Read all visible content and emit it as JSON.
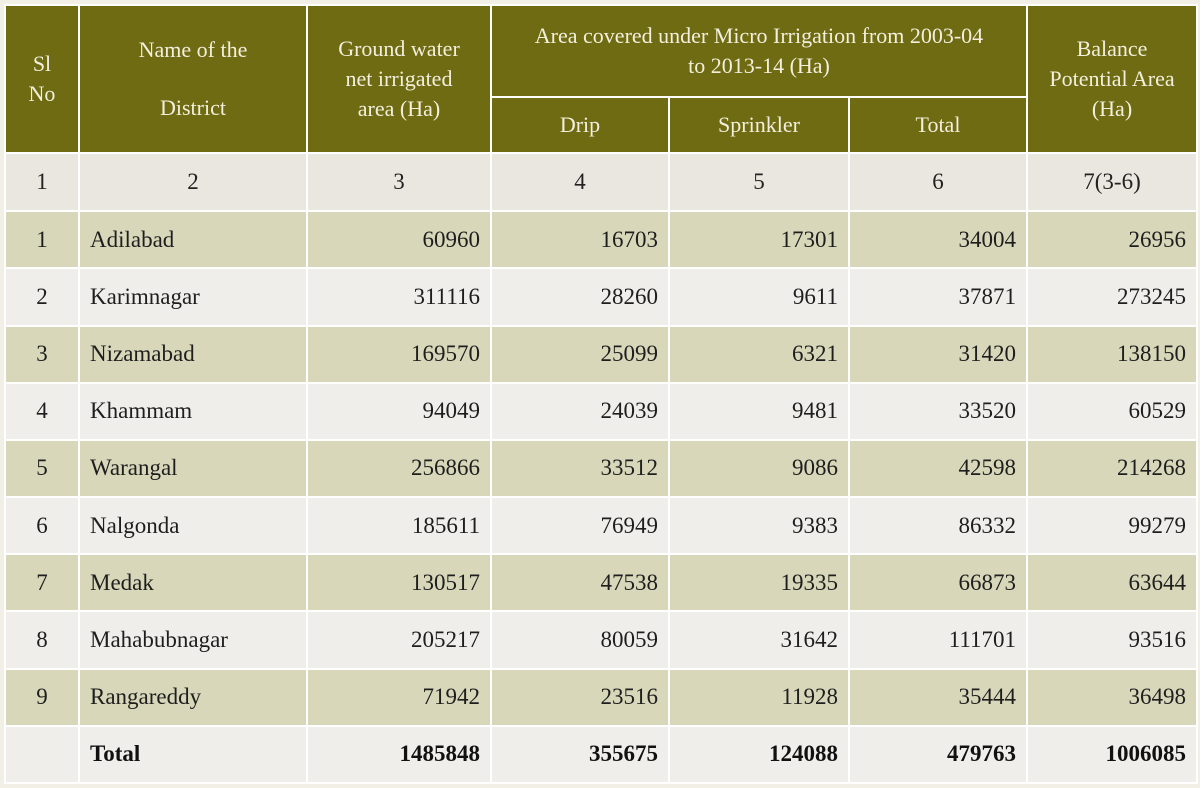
{
  "headers": {
    "sl_no": [
      "Sl",
      "No"
    ],
    "district": [
      "Name of the",
      "District"
    ],
    "ground_water": [
      "Ground water",
      "net irrigated",
      "area  (Ha)"
    ],
    "micro_irrigation": [
      "Area covered under Micro Irrigation from 2003-04",
      "to 2013-14 (Ha)"
    ],
    "drip": "Drip",
    "sprinkler": "Sprinkler",
    "total": "Total",
    "balance": [
      "Balance",
      "Potential Area",
      "(Ha)"
    ]
  },
  "column_numbers": [
    "1",
    "2",
    "3",
    "4",
    "5",
    "6",
    "7(3-6)"
  ],
  "rows": [
    {
      "sl": "1",
      "district": "Adilabad",
      "ground_water": "60960",
      "drip": "16703",
      "sprinkler": "17301",
      "total": "34004",
      "balance": "26956"
    },
    {
      "sl": "2",
      "district": "Karimnagar",
      "ground_water": "311116",
      "drip": "28260",
      "sprinkler": "9611",
      "total": "37871",
      "balance": "273245"
    },
    {
      "sl": "3",
      "district": "Nizamabad",
      "ground_water": "169570",
      "drip": "25099",
      "sprinkler": "6321",
      "total": "31420",
      "balance": "138150"
    },
    {
      "sl": "4",
      "district": "Khammam",
      "ground_water": "94049",
      "drip": "24039",
      "sprinkler": "9481",
      "total": "33520",
      "balance": "60529"
    },
    {
      "sl": "5",
      "district": "Warangal",
      "ground_water": "256866",
      "drip": "33512",
      "sprinkler": "9086",
      "total": "42598",
      "balance": "214268"
    },
    {
      "sl": "6",
      "district": "Nalgonda",
      "ground_water": "185611",
      "drip": "76949",
      "sprinkler": "9383",
      "total": "86332",
      "balance": "99279"
    },
    {
      "sl": "7",
      "district": "Medak",
      "ground_water": "130517",
      "drip": "47538",
      "sprinkler": "19335",
      "total": "66873",
      "balance": "63644"
    },
    {
      "sl": "8",
      "district": "Mahabubnagar",
      "ground_water": "205217",
      "drip": "80059",
      "sprinkler": "31642",
      "total": "111701",
      "balance": "93516"
    },
    {
      "sl": "9",
      "district": "Rangareddy",
      "ground_water": "71942",
      "drip": "23516",
      "sprinkler": "11928",
      "total": "35444",
      "balance": "36498"
    }
  ],
  "totals": {
    "label": "Total",
    "ground_water": "1485848",
    "drip": "355675",
    "sprinkler": "124088",
    "total": "479763",
    "balance": "1006085"
  },
  "colors": {
    "header_bg": "#6f6b12",
    "header_text": "#f3efdd",
    "row_odd": "#d8d7b9",
    "row_even": "#efeeea"
  }
}
